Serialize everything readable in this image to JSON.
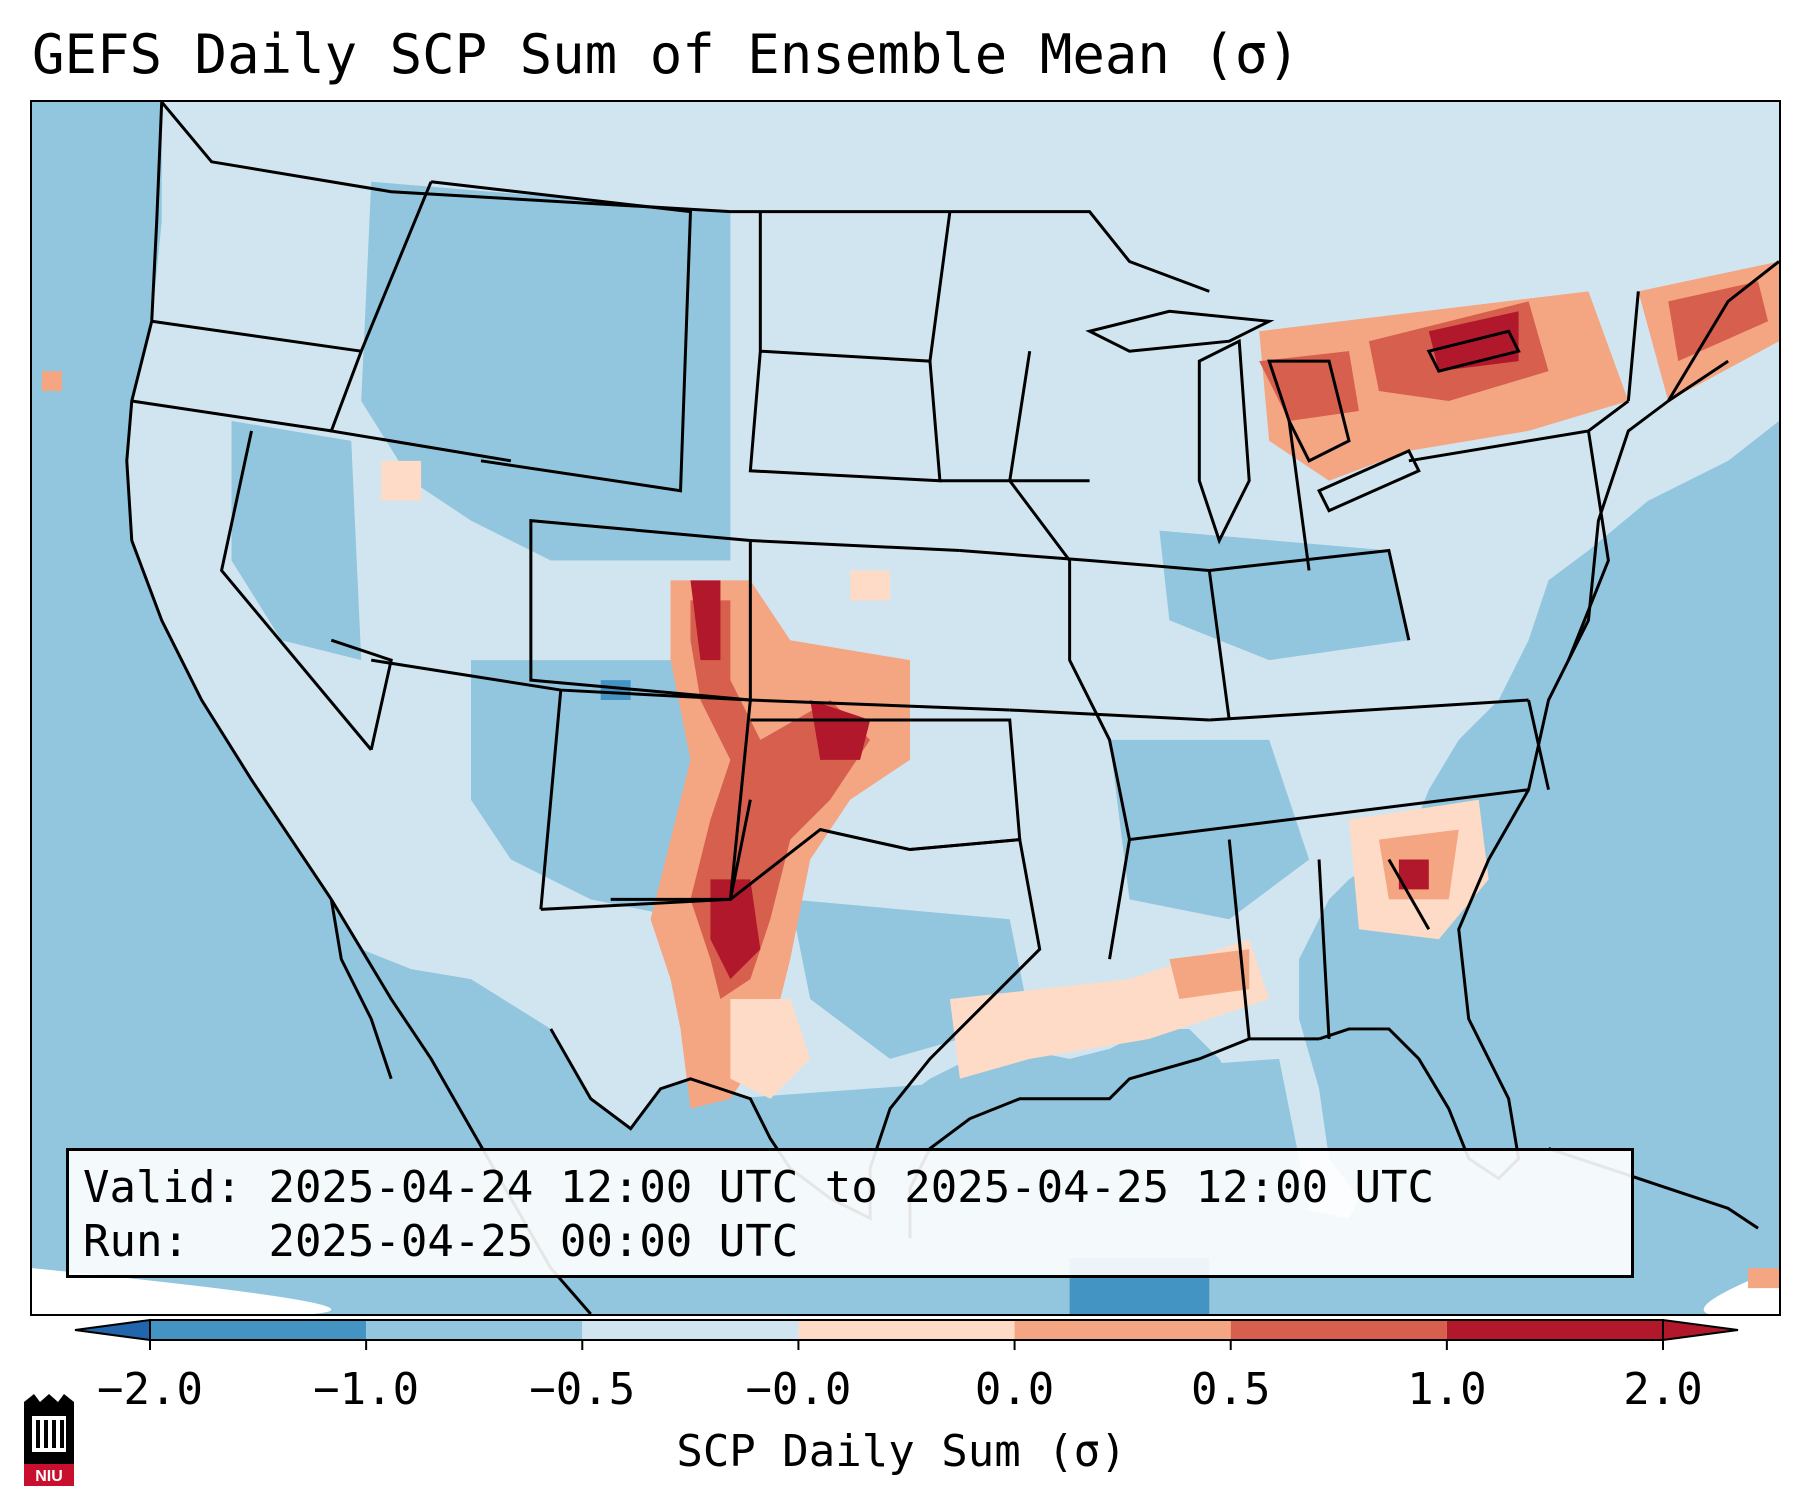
{
  "title": "GEFS Daily SCP Sum of Ensemble Mean (σ)",
  "info": {
    "valid_label": "Valid:",
    "valid_value": "2025-04-24 12:00 UTC to 2025-04-25 12:00 UTC",
    "run_label": "Run:",
    "run_value": "2025-04-25 00:00 UTC"
  },
  "colorbar": {
    "label": "SCP Daily Sum (σ)",
    "ticks": [
      "−2.0",
      "−1.0",
      "−0.5",
      "−0.0",
      "0.0",
      "0.5",
      "1.0",
      "2.0"
    ],
    "colors": [
      "#4393c3",
      "#92c5de",
      "#d1e5f0",
      "#fddbc7",
      "#f4a582",
      "#d6604d",
      "#b2182b"
    ],
    "extend_low_color": "#2166ac",
    "extend_high_color": "#b2182b"
  },
  "map": {
    "projection": "Lambert conformal, CONUS",
    "ocean_color": "#92c5de",
    "land_color": "#d1e5f0",
    "border_color": "#000000",
    "highlights": [
      "Front Range Colorado to West Texas (1.0–2.0+)",
      "Oklahoma panhandle / SW Kansas (1.0–2.0+)",
      "Lake Ontario / upstate New York (1.0–2.0+)",
      "Maine / New England coast (0.5–2.0)",
      "Georgia / South Carolina (0.5–2.0)",
      "Gulf coast Texas / Louisiana (0.0–0.5)"
    ]
  },
  "logo": {
    "text": "NIU"
  }
}
